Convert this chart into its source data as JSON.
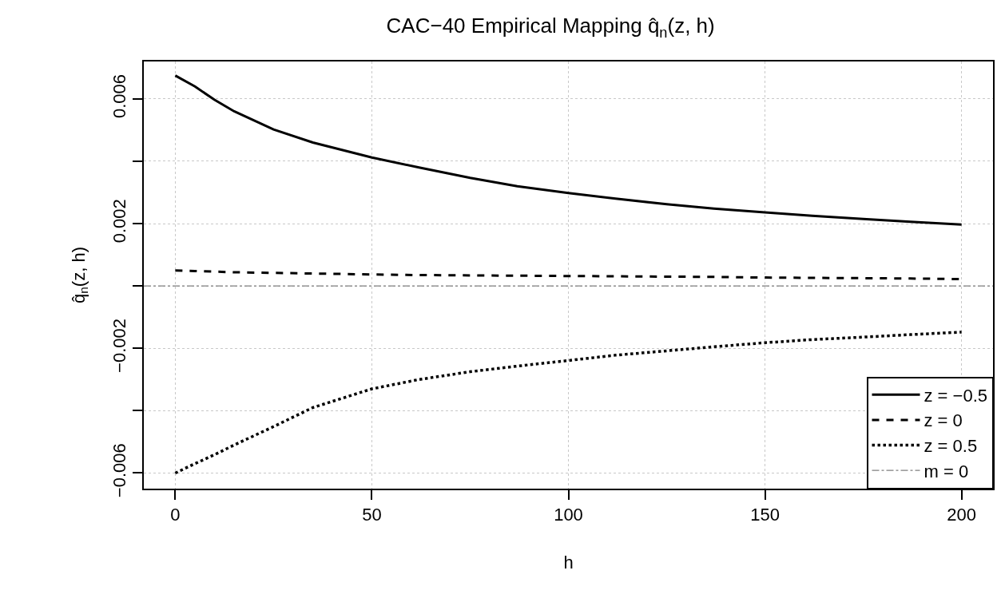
{
  "chart_data": {
    "type": "line",
    "title": "CAC−40 Empirical Mapping q̂$_{n}$(z, h)",
    "xlabel": "h",
    "ylabel": "q̂$_{n}$(z, h)",
    "x": [
      0,
      5,
      10,
      15,
      25,
      35,
      50,
      62,
      75,
      87,
      100,
      112,
      125,
      137,
      150,
      162,
      175,
      187,
      200
    ],
    "series": [
      {
        "name": "z = −0.5",
        "color": "#000000",
        "line_style": "solid",
        "values": [
          0.00675,
          0.0064,
          0.00597,
          0.0056,
          0.00502,
          0.0046,
          0.00412,
          0.0038,
          0.00347,
          0.0032,
          0.00298,
          0.0028,
          0.00262,
          0.00248,
          0.00236,
          0.00225,
          0.00215,
          0.00206,
          0.00197
        ]
      },
      {
        "name": "z = 0",
        "color": "#000000",
        "line_style": "dashed",
        "values": [
          0.0005,
          0.00048,
          0.00046,
          0.00044,
          0.00042,
          0.0004,
          0.00037,
          0.00035,
          0.00034,
          0.00033,
          0.00032,
          0.00031,
          0.0003,
          0.00029,
          0.00027,
          0.00026,
          0.00025,
          0.00024,
          0.00022
        ]
      },
      {
        "name": "z = 0.5",
        "color": "#000000",
        "line_style": "dotted",
        "values": [
          -0.006,
          -0.0057,
          -0.00541,
          -0.0051,
          -0.00451,
          -0.0039,
          -0.0033,
          -0.003,
          -0.00275,
          -0.00257,
          -0.00239,
          -0.00222,
          -0.00208,
          -0.00195,
          -0.00182,
          -0.00172,
          -0.00164,
          -0.00156,
          -0.00148
        ]
      }
    ],
    "ref_lines": [
      {
        "axis": "y",
        "value": 0,
        "label": "m = 0",
        "color": "#808080",
        "line_style": "dashdot"
      }
    ],
    "xlim": [
      -8,
      208
    ],
    "xticks": [
      0,
      50,
      100,
      150,
      200
    ],
    "ylim": [
      -0.0065,
      0.0072
    ],
    "yticks": [
      {
        "value": -0.006,
        "label": "−0.006"
      },
      {
        "value": -0.004,
        "label": null
      },
      {
        "value": -0.002,
        "label": "−0.002"
      },
      {
        "value": 0,
        "label": null
      },
      {
        "value": 0.002,
        "label": "0.002"
      },
      {
        "value": 0.004,
        "label": null
      },
      {
        "value": 0.006,
        "label": "0.006"
      }
    ],
    "grid": true,
    "legend": "bottom right"
  }
}
